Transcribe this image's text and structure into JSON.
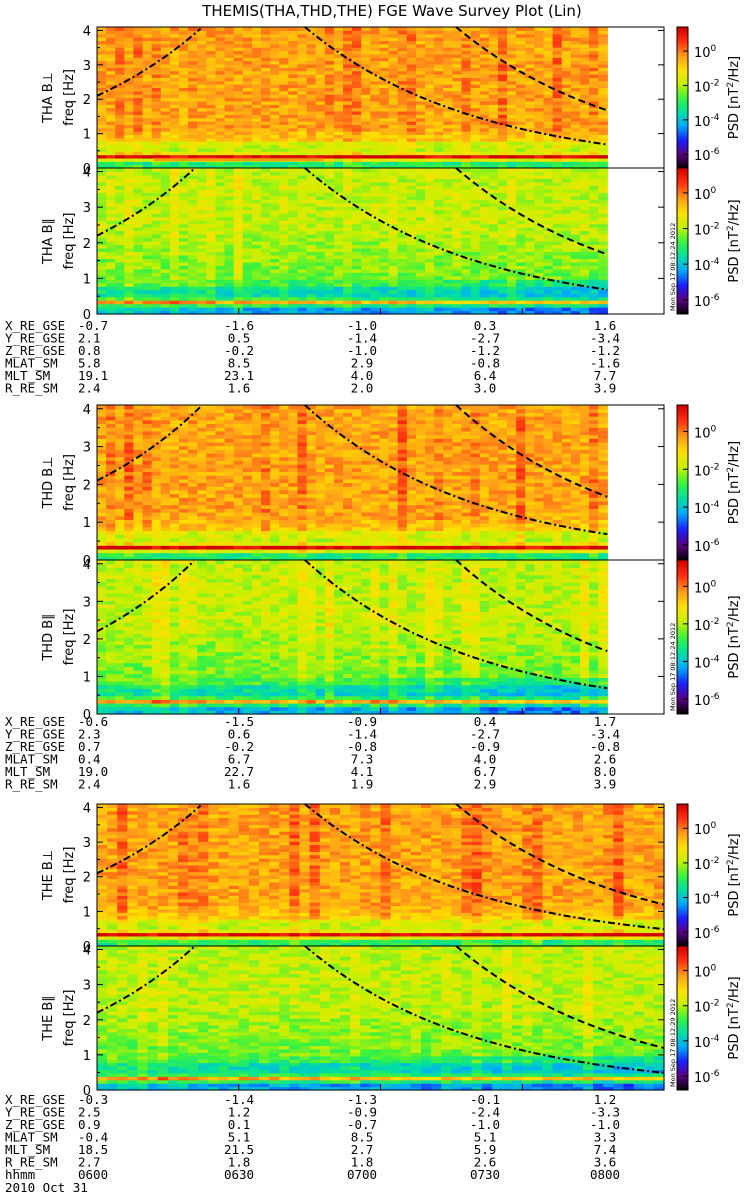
{
  "chart_data": {
    "type": "heatmap",
    "title": "THEMIS(THA,THD,THE) FGE Wave Survey Plot (Lin)",
    "x_axis": {
      "label": "hhmm",
      "tick_labels": [
        "0600",
        "0630",
        "0700",
        "0730",
        "0800"
      ],
      "date": "2010 Oct 31",
      "range_minutes": [
        0,
        120
      ]
    },
    "y_axis": {
      "label": "freq [Hz]",
      "range": [
        0,
        4.1
      ],
      "ticks": [
        0,
        1,
        2,
        3,
        4
      ]
    },
    "colorbar": {
      "label": "PSD [nT^2/Hz]",
      "label_base": "PSD [nT",
      "label_sup": "2",
      "label_tail": "/Hz]",
      "scale": "log",
      "range_exp": [
        -6.8,
        1.4
      ],
      "tick_exponents": [
        0,
        -2,
        -4,
        -6
      ],
      "tick_base": "10",
      "tick_sups": [
        "0",
        "-2",
        "-4",
        "-6"
      ]
    },
    "colors": [
      "#000000",
      "#5a0080",
      "#1a20ff",
      "#00a8ff",
      "#00e0a0",
      "#3cf23c",
      "#c8f000",
      "#ffe000",
      "#ff9a1a",
      "#ff3010",
      "#d00000"
    ],
    "panels": [
      {
        "probe": "THA",
        "comp": "B⊥",
        "label": "THA B⊥",
        "stamp": "",
        "data_end_min": 108,
        "gap": [
          {
            "f": 0.25,
            "start": 12,
            "end": 48
          }
        ]
      },
      {
        "probe": "THA",
        "comp": "B∥",
        "label": "THA B∥",
        "stamp": "Mon Sep 17 08:12:24 2012",
        "data_end_min": 108,
        "gap": []
      },
      {
        "probe": "THD",
        "comp": "B⊥",
        "label": "THD B⊥",
        "stamp": "",
        "data_end_min": 108,
        "gap": []
      },
      {
        "probe": "THD",
        "comp": "B∥",
        "label": "THD B∥",
        "stamp": "Mon Sep 17 08:12:24 2012",
        "data_end_min": 108,
        "gap": []
      },
      {
        "probe": "THE",
        "comp": "B⊥",
        "label": "THE B⊥",
        "stamp": "",
        "data_end_min": 120,
        "gap": []
      },
      {
        "probe": "THE",
        "comp": "B∥",
        "label": "THE B∥",
        "stamp": "Mon Sep 17 08:12:29 2012",
        "data_end_min": 120,
        "gap": []
      }
    ],
    "curves": [
      {
        "name": "fc_He",
        "style": "dashdot"
      },
      {
        "name": "fc_O",
        "style": "dash"
      }
    ],
    "orbit_rows": [
      "X_RE_GSE",
      "Y_RE_GSE",
      "Z_RE_GSE",
      "MLAT_SM",
      "MLT_SM",
      "R_RE_SM"
    ],
    "orbit": [
      {
        "probe": "THA",
        "values": [
          [
            "-0.7",
            "-1.6",
            "-1.0",
            "0.3",
            "1.6"
          ],
          [
            "2.1",
            "0.5",
            "-1.4",
            "-2.7",
            "-3.4"
          ],
          [
            "0.8",
            "-0.2",
            "-1.0",
            "-1.2",
            "-1.2"
          ],
          [
            "5.8",
            "8.5",
            "2.9",
            "-0.8",
            "-1.6"
          ],
          [
            "19.1",
            "23.1",
            "4.0",
            "6.4",
            "7.7"
          ],
          [
            "2.4",
            "1.6",
            "2.0",
            "3.0",
            "3.9"
          ]
        ]
      },
      {
        "probe": "THD",
        "values": [
          [
            "-0.6",
            "-1.5",
            "-0.9",
            "0.4",
            "1.7"
          ],
          [
            "2.3",
            "0.6",
            "-1.4",
            "-2.7",
            "-3.4"
          ],
          [
            "0.7",
            "-0.2",
            "-0.8",
            "-0.9",
            "-0.8"
          ],
          [
            "0.4",
            "6.7",
            "7.3",
            "4.0",
            "2.6"
          ],
          [
            "19.0",
            "22.7",
            "4.1",
            "6.7",
            "8.0"
          ],
          [
            "2.4",
            "1.6",
            "1.9",
            "2.9",
            "3.9"
          ]
        ]
      },
      {
        "probe": "THE",
        "values": [
          [
            "-0.3",
            "-1.4",
            "-1.3",
            "-0.1",
            "1.2"
          ],
          [
            "2.5",
            "1.2",
            "-0.9",
            "-2.4",
            "-3.3"
          ],
          [
            "0.9",
            "0.1",
            "-0.7",
            "-1.0",
            "-1.0"
          ],
          [
            "-0.4",
            "5.1",
            "8.5",
            "5.1",
            "3.3"
          ],
          [
            "18.5",
            "21.5",
            "2.7",
            "5.9",
            "7.4"
          ],
          [
            "2.7",
            "1.8",
            "1.8",
            "2.6",
            "3.6"
          ]
        ]
      }
    ]
  }
}
